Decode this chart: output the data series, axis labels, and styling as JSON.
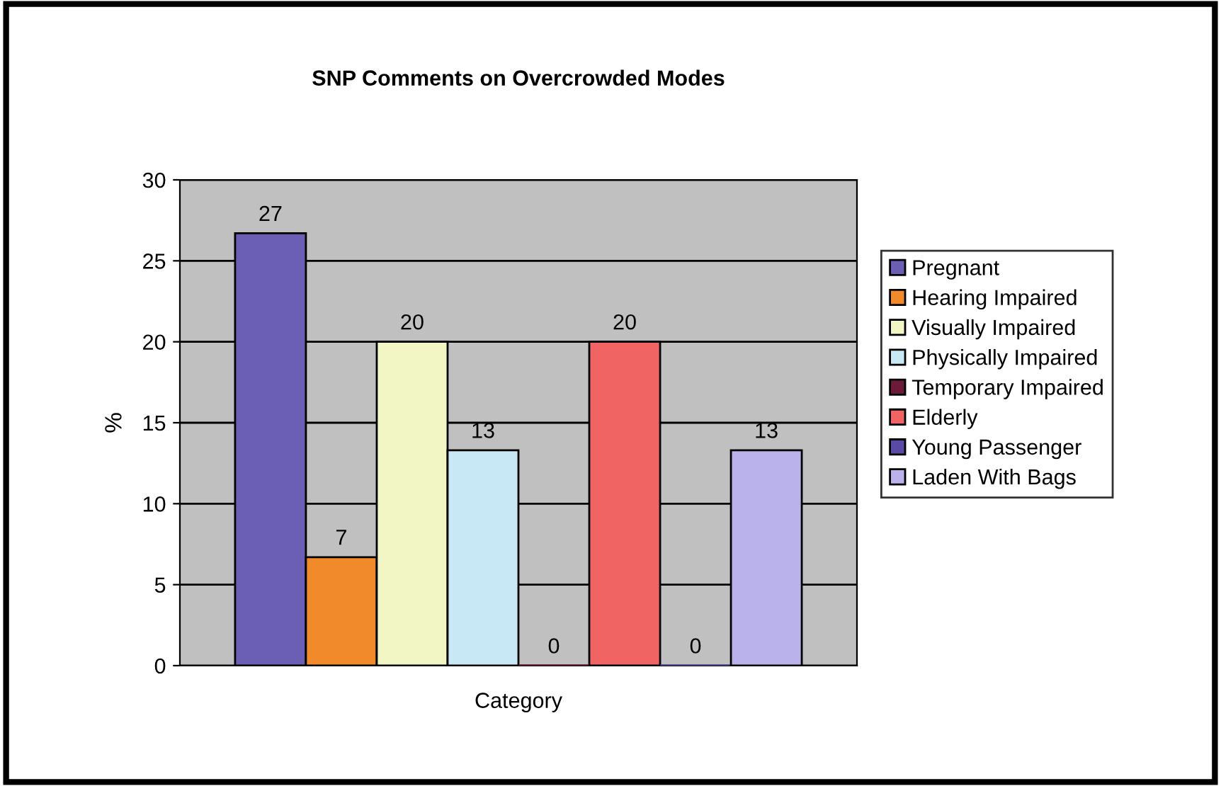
{
  "chart_data": {
    "type": "bar",
    "title": "SNP Comments on Overcrowded Modes",
    "xlabel": "Category",
    "ylabel": "%",
    "categories": [
      null
    ],
    "series": [
      {
        "name": "Pregnant",
        "color": "#6b5fb5",
        "values": [
          26.7
        ],
        "value_labels": [
          "27"
        ]
      },
      {
        "name": "Hearing Impaired",
        "color": "#f08a2a",
        "values": [
          6.7
        ],
        "value_labels": [
          "7"
        ]
      },
      {
        "name": "Visually Impaired",
        "color": "#f2f6c4",
        "values": [
          20
        ],
        "value_labels": [
          "20"
        ]
      },
      {
        "name": "Physically Impaired",
        "color": "#c8e8f5",
        "values": [
          13.3
        ],
        "value_labels": [
          "13"
        ]
      },
      {
        "name": "Temporary Impaired",
        "color": "#6b1a3a",
        "values": [
          0
        ],
        "value_labels": [
          "0"
        ]
      },
      {
        "name": "Elderly",
        "color": "#f06464",
        "values": [
          20
        ],
        "value_labels": [
          "20"
        ]
      },
      {
        "name": "Young Passenger",
        "color": "#5a4aa5",
        "values": [
          0
        ],
        "value_labels": [
          "0"
        ]
      },
      {
        "name": "Laden With Bags",
        "color": "#bab2ea",
        "values": [
          13.3
        ],
        "value_labels": [
          "13"
        ]
      }
    ],
    "ylim": [
      0,
      30
    ],
    "yticks": [
      0,
      5,
      10,
      15,
      20,
      25,
      30
    ],
    "grid": "y",
    "legend": "right"
  }
}
